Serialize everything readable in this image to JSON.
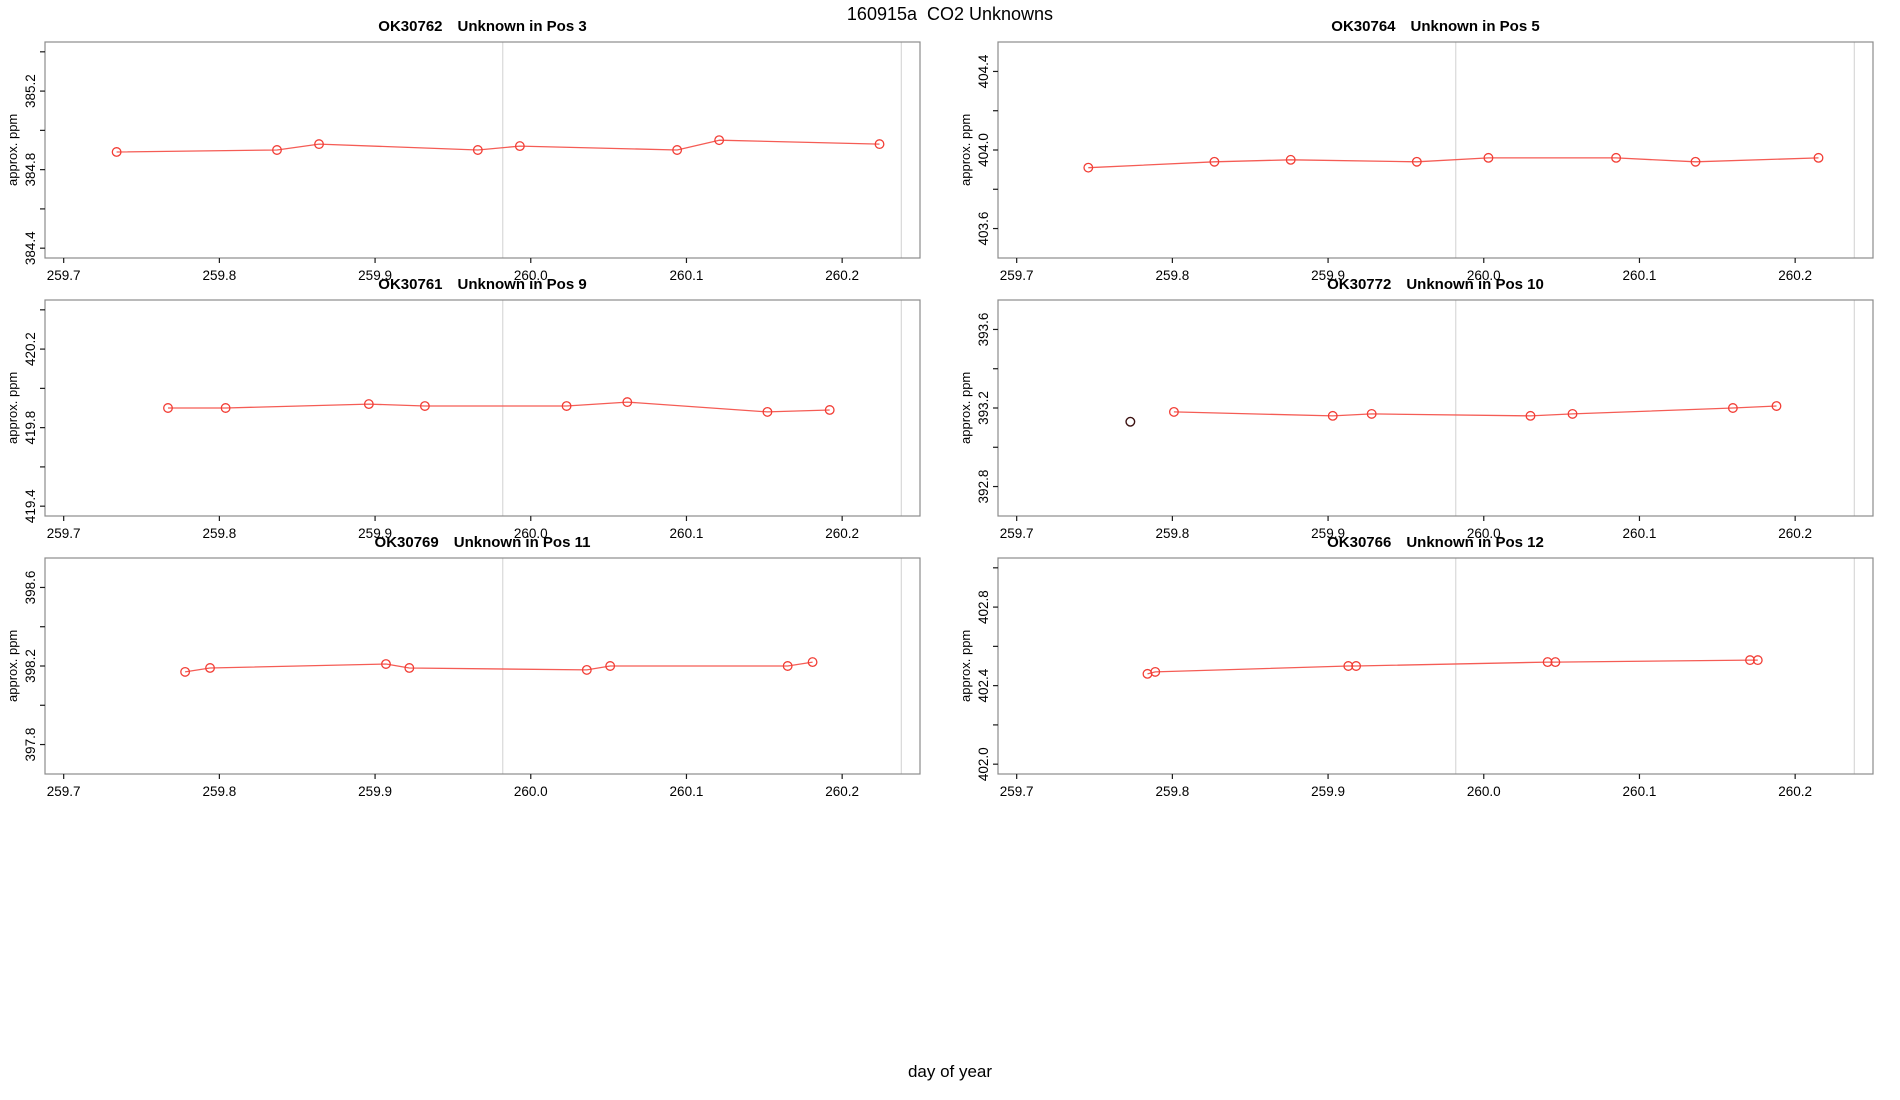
{
  "page_title": "160915a  CO2 Unknowns",
  "footer_xlabel": "day of year",
  "colors": {
    "series_line": "#f55c55",
    "point_stroke": "#f23d35",
    "outlier_stroke": "#3a1010",
    "ref_line": "#d8d8d8",
    "box_stroke": "#8c8c8c",
    "tick_stroke": "#1a1a1a",
    "background": "#ffffff"
  },
  "x_axis": {
    "xlim": [
      259.688,
      260.25
    ],
    "ticks": [
      259.7,
      259.8,
      259.9,
      260.0,
      260.1,
      260.2
    ],
    "tick_labels": [
      "259.7",
      "259.8",
      "259.9",
      "260.0",
      "260.1",
      "260.2"
    ],
    "ref_lines": [
      259.982,
      260.238
    ]
  },
  "chart_data": [
    {
      "type": "line",
      "title": "OK30762   Unknown in Pos 3",
      "title_code": "OK30762",
      "title_desc": "Unknown in Pos 3",
      "ylabel": "approx. ppm",
      "ylim": [
        384.35,
        385.45
      ],
      "y_ticks": [
        {
          "v": 385.4,
          "label": ""
        },
        {
          "v": 385.2,
          "label": "385.2"
        },
        {
          "v": 385.0,
          "label": ""
        },
        {
          "v": 384.8,
          "label": "384.8"
        },
        {
          "v": 384.6,
          "label": ""
        },
        {
          "v": 384.4,
          "label": "384.4"
        }
      ],
      "x": [
        259.734,
        259.837,
        259.864,
        259.966,
        259.993,
        260.094,
        260.121,
        260.224
      ],
      "y": [
        384.89,
        384.9,
        384.93,
        384.9,
        384.92,
        384.9,
        384.95,
        384.93
      ],
      "outlier": null
    },
    {
      "type": "line",
      "title": "OK30764   Unknown in Pos 5",
      "title_code": "OK30764",
      "title_desc": "Unknown in Pos 5",
      "ylabel": "approx. ppm",
      "ylim": [
        403.45,
        404.55
      ],
      "y_ticks": [
        {
          "v": 404.4,
          "label": "404.4"
        },
        {
          "v": 404.2,
          "label": ""
        },
        {
          "v": 404.0,
          "label": "404.0"
        },
        {
          "v": 403.8,
          "label": ""
        },
        {
          "v": 403.6,
          "label": "403.6"
        }
      ],
      "x": [
        259.746,
        259.827,
        259.876,
        259.957,
        260.003,
        260.085,
        260.136,
        260.215
      ],
      "y": [
        403.91,
        403.94,
        403.95,
        403.94,
        403.96,
        403.96,
        403.94,
        403.96
      ],
      "outlier": null
    },
    {
      "type": "line",
      "title": "OK30761   Unknown in Pos 9",
      "title_code": "OK30761",
      "title_desc": "Unknown in Pos 9",
      "ylabel": "approx. ppm",
      "ylim": [
        419.35,
        420.45
      ],
      "y_ticks": [
        {
          "v": 420.4,
          "label": ""
        },
        {
          "v": 420.2,
          "label": "420.2"
        },
        {
          "v": 420.0,
          "label": ""
        },
        {
          "v": 419.8,
          "label": "419.8"
        },
        {
          "v": 419.6,
          "label": ""
        },
        {
          "v": 419.4,
          "label": "419.4"
        }
      ],
      "x": [
        259.767,
        259.804,
        259.896,
        259.932,
        260.023,
        260.062,
        260.152,
        260.192
      ],
      "y": [
        419.9,
        419.9,
        419.92,
        419.91,
        419.91,
        419.93,
        419.88,
        419.89
      ],
      "outlier": null
    },
    {
      "type": "line",
      "title": "OK30772   Unknown in Pos 10",
      "title_code": "OK30772",
      "title_desc": "Unknown in Pos 10",
      "ylabel": "approx. ppm",
      "ylim": [
        392.65,
        393.75
      ],
      "y_ticks": [
        {
          "v": 393.6,
          "label": "393.6"
        },
        {
          "v": 393.4,
          "label": ""
        },
        {
          "v": 393.2,
          "label": "393.2"
        },
        {
          "v": 393.0,
          "label": ""
        },
        {
          "v": 392.8,
          "label": "392.8"
        }
      ],
      "x": [
        259.801,
        259.903,
        259.928,
        260.03,
        260.057,
        260.16,
        260.188
      ],
      "y": [
        393.18,
        393.16,
        393.17,
        393.16,
        393.17,
        393.2,
        393.21
      ],
      "outlier": {
        "x": 259.773,
        "y": 393.13
      }
    },
    {
      "type": "line",
      "title": "OK30769   Unknown in Pos 11",
      "title_code": "OK30769",
      "title_desc": "Unknown in Pos 11",
      "ylabel": "approx. ppm",
      "ylim": [
        397.65,
        398.75
      ],
      "y_ticks": [
        {
          "v": 398.6,
          "label": "398.6"
        },
        {
          "v": 398.4,
          "label": ""
        },
        {
          "v": 398.2,
          "label": "398.2"
        },
        {
          "v": 398.0,
          "label": ""
        },
        {
          "v": 397.8,
          "label": "397.8"
        }
      ],
      "x": [
        259.778,
        259.794,
        259.907,
        259.922,
        260.036,
        260.051,
        260.165,
        260.181
      ],
      "y": [
        398.17,
        398.19,
        398.21,
        398.19,
        398.18,
        398.2,
        398.2,
        398.22
      ],
      "outlier": null
    },
    {
      "type": "line",
      "title": "OK30766   Unknown in Pos 12",
      "title_code": "OK30766",
      "title_desc": "Unknown in Pos 12",
      "ylabel": "approx. ppm",
      "ylim": [
        401.95,
        403.05
      ],
      "y_ticks": [
        {
          "v": 403.0,
          "label": ""
        },
        {
          "v": 402.8,
          "label": "402.8"
        },
        {
          "v": 402.6,
          "label": ""
        },
        {
          "v": 402.4,
          "label": "402.4"
        },
        {
          "v": 402.2,
          "label": ""
        },
        {
          "v": 402.0,
          "label": "402.0"
        }
      ],
      "x": [
        259.784,
        259.789,
        259.913,
        259.918,
        260.041,
        260.046,
        260.171,
        260.176
      ],
      "y": [
        402.46,
        402.47,
        402.5,
        402.5,
        402.52,
        402.52,
        402.53,
        402.53
      ],
      "outlier": null
    }
  ]
}
